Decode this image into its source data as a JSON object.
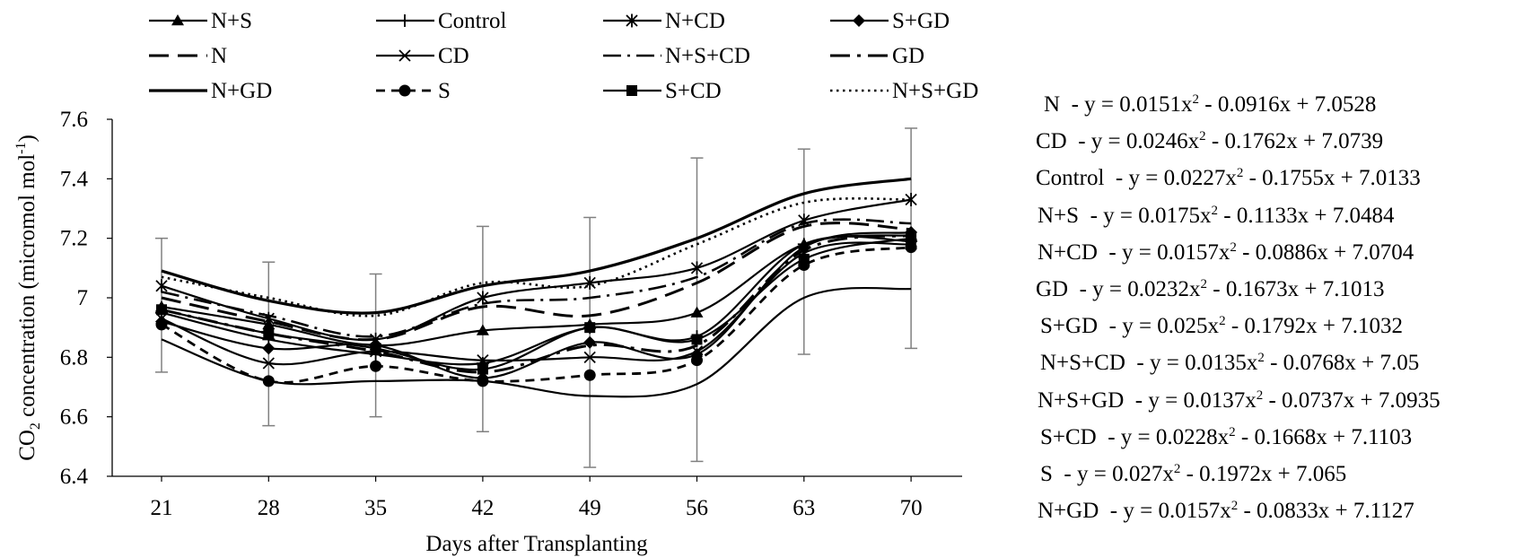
{
  "chart_data": {
    "type": "line",
    "title": "",
    "xlabel": "Days after Transplanting",
    "ylabel_main": "CO",
    "ylabel_sub": "2",
    "ylabel_rest": " concentration (micromol mol",
    "ylabel_sup": "-1",
    "ylabel_end": ")",
    "x": [
      21,
      28,
      35,
      42,
      49,
      56,
      63,
      70
    ],
    "x_tick_labels": [
      "21",
      "28",
      "35",
      "42",
      "49",
      "56",
      "63",
      "70"
    ],
    "ylim": [
      6.4,
      7.6
    ],
    "y_ticks": [
      6.4,
      6.6,
      6.8,
      7.0,
      7.2,
      7.4,
      7.6
    ],
    "y_tick_labels": [
      "6.4",
      "6.6",
      "6.8",
      "7",
      "7.2",
      "7.4",
      "7.6"
    ],
    "grid": false,
    "legend_position": "top",
    "error_bars": {
      "lower": [
        6.75,
        6.57,
        6.6,
        6.55,
        6.43,
        6.45,
        6.81,
        6.83
      ],
      "upper": [
        7.2,
        7.12,
        7.08,
        7.24,
        7.27,
        7.47,
        7.5,
        7.57
      ]
    },
    "series": [
      {
        "name": "N+S",
        "marker": "triangle",
        "dash": "solid",
        "values": [
          6.97,
          6.91,
          6.84,
          6.89,
          6.91,
          6.95,
          7.18,
          7.21
        ]
      },
      {
        "name": "Control",
        "marker": "plus",
        "dash": "solid",
        "values": [
          6.95,
          6.86,
          6.81,
          6.78,
          6.9,
          6.87,
          7.18,
          7.19
        ]
      },
      {
        "name": "N+CD",
        "marker": "asterisk",
        "dash": "solid",
        "values": [
          7.04,
          6.93,
          6.86,
          7.0,
          7.05,
          7.1,
          7.26,
          7.33
        ]
      },
      {
        "name": "S+GD",
        "marker": "diamond",
        "dash": "solid",
        "values": [
          6.92,
          6.83,
          6.84,
          6.73,
          6.85,
          6.81,
          7.17,
          7.22
        ]
      },
      {
        "name": "N",
        "marker": "none",
        "dash": "longdash",
        "values": [
          7.0,
          6.92,
          6.86,
          6.97,
          6.94,
          7.05,
          7.24,
          7.23
        ]
      },
      {
        "name": "CD",
        "marker": "x",
        "dash": "solid",
        "values": [
          6.93,
          6.78,
          6.82,
          6.79,
          6.8,
          6.82,
          7.15,
          7.18
        ]
      },
      {
        "name": "N+S+CD",
        "marker": "none",
        "dash": "dashdot",
        "values": [
          7.02,
          6.94,
          6.87,
          6.98,
          7.0,
          7.07,
          7.25,
          7.25
        ]
      },
      {
        "name": "GD",
        "marker": "none",
        "dash": "longdashdot",
        "values": [
          6.96,
          6.88,
          6.82,
          6.75,
          6.84,
          6.84,
          7.16,
          7.21
        ]
      },
      {
        "name": "N+GD",
        "marker": "none",
        "dash": "solid-thick",
        "values": [
          7.09,
          6.99,
          6.95,
          7.04,
          7.09,
          7.2,
          7.35,
          7.4
        ]
      },
      {
        "name": "S",
        "marker": "circle",
        "dash": "dashed",
        "values": [
          6.91,
          6.72,
          6.77,
          6.72,
          6.74,
          6.79,
          7.11,
          7.17
        ]
      },
      {
        "name": "S+CD",
        "marker": "square",
        "dash": "solid",
        "values": [
          6.96,
          6.88,
          6.83,
          6.76,
          6.9,
          6.86,
          7.13,
          7.2
        ]
      },
      {
        "name": "N+S+GD",
        "marker": "none",
        "dash": "dotted",
        "values": [
          7.07,
          7.0,
          6.94,
          7.05,
          7.04,
          7.18,
          7.32,
          7.33
        ]
      },
      {
        "name": "",
        "marker": "none",
        "dash": "solid",
        "values": [
          6.86,
          6.72,
          6.72,
          6.72,
          6.67,
          6.71,
          7.0,
          7.03
        ]
      }
    ],
    "equations": [
      {
        "label": "N",
        "sep": "  - y = 0.0151x",
        "sup": "2",
        "rest": " - 0.0916x + 7.0528"
      },
      {
        "label": "CD",
        "sep": "  - y = 0.0246x",
        "sup": "2",
        "rest": " - 0.1762x + 7.0739"
      },
      {
        "label": "Control",
        "sep": "  - y = 0.0227x",
        "sup": "2",
        "rest": " - 0.1755x + 7.0133"
      },
      {
        "label": "N+S",
        "sep": "  - y = 0.0175x",
        "sup": "2",
        "rest": " - 0.1133x + 7.0484"
      },
      {
        "label": "N+CD",
        "sep": "  - y = 0.0157x",
        "sup": "2",
        "rest": " - 0.0886x + 7.0704"
      },
      {
        "label": "GD",
        "sep": "  - y = 0.0232x",
        "sup": "2",
        "rest": " - 0.1673x + 7.1013"
      },
      {
        "label": "S+GD",
        "sep": "  - y = 0.025x",
        "sup": "2",
        "rest": " - 0.1792x + 7.1032"
      },
      {
        "label": "N+S+CD",
        "sep": "  - y = 0.0135x",
        "sup": "2",
        "rest": " - 0.0768x + 7.05"
      },
      {
        "label": "N+S+GD",
        "sep": "  - y = 0.0137x",
        "sup": "2",
        "rest": " - 0.0737x + 7.0935"
      },
      {
        "label": "S+CD",
        "sep": "  - y = 0.0228x",
        "sup": "2",
        "rest": " - 0.1668x + 7.1103"
      },
      {
        "label": "S",
        "sep": "  - y = 0.027x",
        "sup": "2",
        "rest": " - 0.1972x + 7.065"
      },
      {
        "label": "N+GD",
        "sep": "  - y = 0.0157x",
        "sup": "2",
        "rest": " - 0.0833x + 7.1127"
      }
    ]
  }
}
